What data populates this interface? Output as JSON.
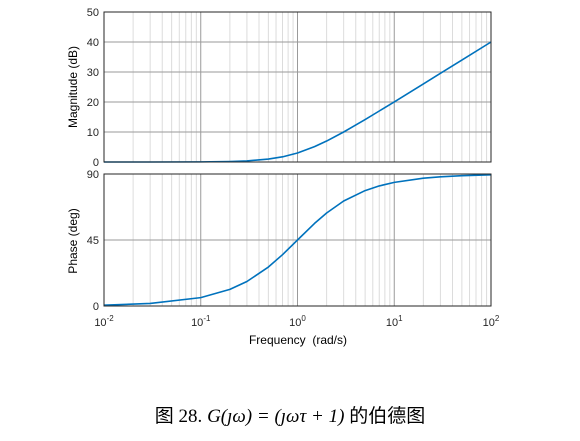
{
  "caption": {
    "prefix": "图 28.",
    "math": "G(ȷω) = (ȷωτ + 1)",
    "suffix": "的伯德图"
  },
  "chart_data": [
    {
      "type": "line",
      "name": "magnitude-plot",
      "xlabel": "",
      "ylabel": "Magnitude (dB)",
      "xscale": "log",
      "xlim": [
        0.01,
        100
      ],
      "ylim": [
        0,
        50
      ],
      "yticks": [
        "0",
        "10",
        "20",
        "30",
        "40",
        "50"
      ],
      "grid": true,
      "color": "#0072BD",
      "x": [
        0.01,
        0.03,
        0.1,
        0.2,
        0.3,
        0.5,
        0.7,
        1,
        1.5,
        2,
        3,
        5,
        7,
        10,
        20,
        30,
        50,
        100
      ],
      "y": [
        0.0,
        0.0,
        0.04,
        0.17,
        0.37,
        0.97,
        1.72,
        3.01,
        5.12,
        6.99,
        10.0,
        14.15,
        17.0,
        20.04,
        26.03,
        29.55,
        33.98,
        40.0
      ]
    },
    {
      "type": "line",
      "name": "phase-plot",
      "xlabel": "Frequency  (rad/s)",
      "ylabel": "Phase (deg)",
      "xscale": "log",
      "xlim": [
        0.01,
        100
      ],
      "ylim": [
        0,
        90
      ],
      "yticks": [
        "0",
        "45",
        "90"
      ],
      "xticks": [
        {
          "base": "10",
          "exp": "-2"
        },
        {
          "base": "10",
          "exp": "-1"
        },
        {
          "base": "10",
          "exp": "0"
        },
        {
          "base": "10",
          "exp": "1"
        },
        {
          "base": "10",
          "exp": "2"
        }
      ],
      "grid": true,
      "color": "#0072BD",
      "x": [
        0.01,
        0.03,
        0.1,
        0.2,
        0.3,
        0.5,
        0.7,
        1,
        1.5,
        2,
        3,
        5,
        7,
        10,
        20,
        30,
        50,
        100
      ],
      "y": [
        0.57,
        1.72,
        5.71,
        11.31,
        16.7,
        26.57,
        34.99,
        45.0,
        56.31,
        63.43,
        71.57,
        78.69,
        81.87,
        84.29,
        87.14,
        88.09,
        88.85,
        89.43
      ]
    }
  ]
}
